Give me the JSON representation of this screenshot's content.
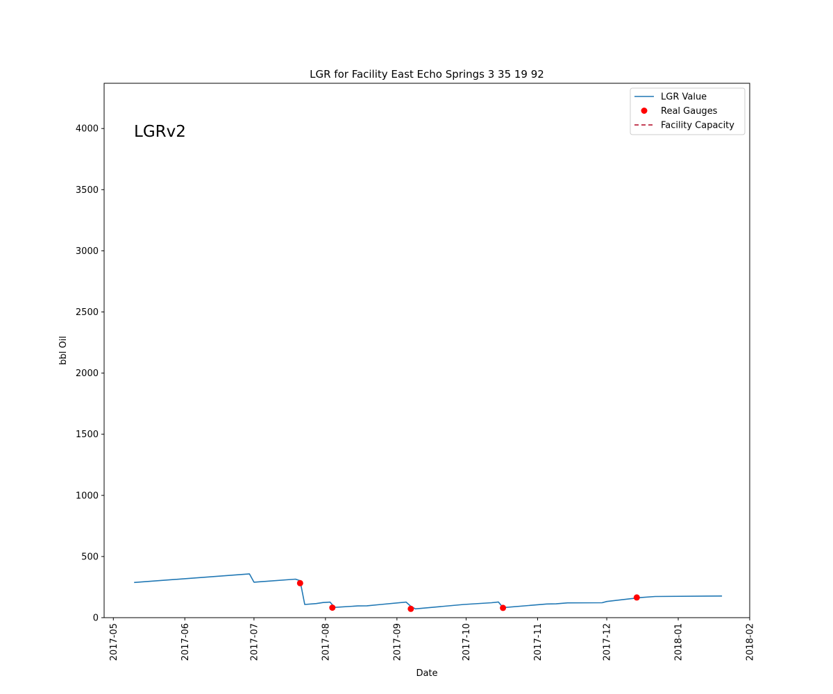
{
  "chart_data": {
    "type": "line",
    "title": "LGR for Facility East Echo Springs 3 35 19 92",
    "xlabel": "Date",
    "ylabel": "bbl Oil",
    "annotation": "LGRv2",
    "xlim": [
      "2017-04-27",
      "2018-02-01"
    ],
    "ylim": [
      0,
      4370
    ],
    "xticks": [
      "2017-05",
      "2017-06",
      "2017-07",
      "2017-08",
      "2017-09",
      "2017-10",
      "2017-11",
      "2017-12",
      "2018-01",
      "2018-02"
    ],
    "yticks": [
      0,
      500,
      1000,
      1500,
      2000,
      2500,
      3000,
      3500,
      4000
    ],
    "legend_position": "top-right",
    "grid": false,
    "series": [
      {
        "name": "LGR Value",
        "kind": "line",
        "color": "#1f77b4",
        "points": [
          [
            "2017-05-10",
            288
          ],
          [
            "2017-06-29",
            358
          ],
          [
            "2017-07-01",
            290
          ],
          [
            "2017-07-19",
            315
          ],
          [
            "2017-07-21",
            302
          ],
          [
            "2017-07-23",
            108
          ],
          [
            "2017-07-28",
            115
          ],
          [
            "2017-07-31",
            124
          ],
          [
            "2017-08-03",
            127
          ],
          [
            "2017-08-05",
            84
          ],
          [
            "2017-08-15",
            96
          ],
          [
            "2017-08-19",
            97
          ],
          [
            "2017-08-25",
            108
          ],
          [
            "2017-09-05",
            127
          ],
          [
            "2017-09-07",
            93
          ],
          [
            "2017-09-09",
            72
          ],
          [
            "2017-09-30",
            108
          ],
          [
            "2017-10-12",
            122
          ],
          [
            "2017-10-15",
            128
          ],
          [
            "2017-10-17",
            82
          ],
          [
            "2017-11-05",
            112
          ],
          [
            "2017-11-09",
            113
          ],
          [
            "2017-11-14",
            121
          ],
          [
            "2017-11-29",
            122
          ],
          [
            "2017-12-01",
            132
          ],
          [
            "2017-12-16",
            165
          ],
          [
            "2017-12-22",
            173
          ],
          [
            "2018-01-20",
            177
          ]
        ]
      },
      {
        "name": "Real Gauges",
        "kind": "scatter",
        "color": "#ff0000",
        "points": [
          [
            "2017-07-21",
            282
          ],
          [
            "2017-08-04",
            82
          ],
          [
            "2017-09-07",
            72
          ],
          [
            "2017-10-17",
            80
          ],
          [
            "2017-12-14",
            165
          ]
        ]
      },
      {
        "name": "Facility Capacity",
        "kind": "dashed-line",
        "color": "#b0001e",
        "points": []
      }
    ]
  }
}
